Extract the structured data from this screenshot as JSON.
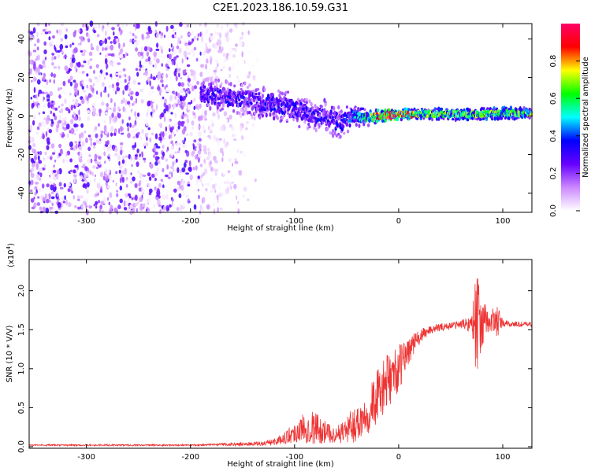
{
  "title": "C2E1.2023.186.10.59.G31",
  "chart_data": [
    {
      "type": "heatmap",
      "xlabel": "Height of straight line (km)",
      "ylabel": "Frequency (Hz)",
      "xlim": [
        -355,
        128
      ],
      "ylim": [
        -50,
        48
      ],
      "x_ticks": [
        -300,
        -200,
        -100,
        0,
        100
      ],
      "x_tick_labels": [
        "-300",
        "-200",
        "-100",
        "0",
        "100"
      ],
      "y_ticks": [
        -40,
        -20,
        0,
        20,
        40
      ],
      "y_tick_labels": [
        "-40",
        "-20",
        "0",
        "20",
        "40"
      ],
      "colorbar": {
        "label": "Normalized spectral amplitude",
        "range": [
          0,
          1
        ],
        "ticks": [
          0.0,
          0.2,
          0.4,
          0.6,
          0.8
        ],
        "tick_labels": [
          "0.0",
          "0.2",
          "0.4",
          "0.6",
          "0.8"
        ],
        "colormap": [
          "#ffffff",
          "#cc88ff",
          "#6600ff",
          "#0000ff",
          "#00ffff",
          "#00ff00",
          "#ffff00",
          "#ff0000",
          "#ff0066"
        ]
      },
      "signal_track": {
        "x": [
          -190,
          -170,
          -150,
          -130,
          -110,
          -90,
          -70,
          -55,
          -45,
          -30,
          -15,
          0,
          20,
          50,
          80,
          110,
          128
        ],
        "frequency": [
          12,
          10,
          9,
          7,
          5,
          2,
          0,
          -4,
          0,
          -1,
          0,
          1,
          1,
          1,
          1,
          1.5,
          1.5
        ],
        "spread": [
          6,
          6,
          6,
          6,
          6,
          6,
          6,
          6,
          4,
          3,
          2,
          2,
          2,
          2,
          2,
          2,
          2
        ],
        "amplitude": [
          0.3,
          0.3,
          0.3,
          0.3,
          0.3,
          0.3,
          0.3,
          0.3,
          0.4,
          0.5,
          0.9,
          0.9,
          0.6,
          0.6,
          0.6,
          0.6,
          0.6
        ]
      },
      "noise_region_x": [
        -355,
        -190
      ]
    },
    {
      "type": "line",
      "xlabel": "Height of straight line (km)",
      "ylabel": "SNR (10 * V/V)",
      "y_multiplier_label": "(x10",
      "y_multiplier_exp": "4",
      "y_multiplier_close": ")",
      "color": "#ee3333",
      "xlim": [
        -355,
        128
      ],
      "ylim": [
        -0.02,
        2.4
      ],
      "x_ticks": [
        -300,
        -200,
        -100,
        0,
        100
      ],
      "x_tick_labels": [
        "-300",
        "-200",
        "-100",
        "0",
        "100"
      ],
      "y_ticks": [
        0.0,
        0.5,
        1.0,
        1.5,
        2.0
      ],
      "y_tick_labels": [
        "0.0",
        "0.5",
        "1.0",
        "1.5",
        "2.0"
      ],
      "envelope": {
        "x": [
          -355,
          -200,
          -160,
          -130,
          -115,
          -100,
          -90,
          -80,
          -70,
          -60,
          -50,
          -40,
          -30,
          -20,
          -10,
          0,
          10,
          20,
          30,
          40,
          50,
          60,
          70,
          72,
          75,
          78,
          85,
          95,
          100,
          110,
          128
        ],
        "center": [
          0.02,
          0.02,
          0.03,
          0.04,
          0.08,
          0.18,
          0.25,
          0.25,
          0.18,
          0.15,
          0.22,
          0.3,
          0.45,
          0.65,
          0.85,
          1.0,
          1.25,
          1.4,
          1.5,
          1.53,
          1.55,
          1.57,
          1.58,
          1.6,
          1.6,
          1.58,
          1.6,
          1.6,
          1.58,
          1.57,
          1.57
        ],
        "amp": [
          0.01,
          0.01,
          0.02,
          0.03,
          0.05,
          0.14,
          0.2,
          0.22,
          0.14,
          0.1,
          0.18,
          0.25,
          0.3,
          0.35,
          0.35,
          0.3,
          0.18,
          0.1,
          0.06,
          0.05,
          0.05,
          0.05,
          0.12,
          0.4,
          0.75,
          0.4,
          0.18,
          0.2,
          0.05,
          0.04,
          0.03
        ]
      }
    }
  ]
}
